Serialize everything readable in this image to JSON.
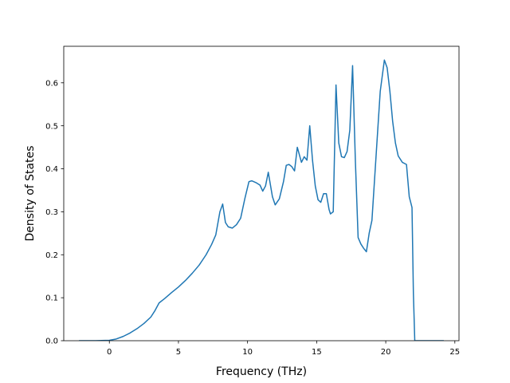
{
  "chart_data": {
    "type": "line",
    "title": "",
    "xlabel": "Frequency (THz)",
    "ylabel": "Density of States",
    "xlim": [
      -3.3,
      25.3
    ],
    "ylim": [
      0.0,
      0.685
    ],
    "xticks": [
      0,
      5,
      10,
      15,
      20,
      25
    ],
    "yticks": [
      0.0,
      0.1,
      0.2,
      0.3,
      0.4,
      0.5,
      0.6
    ],
    "xtick_labels": [
      "0",
      "5",
      "10",
      "15",
      "20",
      "25"
    ],
    "ytick_labels": [
      "0.0",
      "0.1",
      "0.2",
      "0.3",
      "0.4",
      "0.5",
      "0.6"
    ],
    "grid": false,
    "legend": "none",
    "line_color": "#1f77b4",
    "series": [
      {
        "x": [
          -2.2,
          -1.0,
          0.0,
          0.5,
          1.0,
          1.5,
          2.0,
          2.5,
          3.0,
          3.3,
          3.6,
          4.0,
          4.5,
          5.0,
          5.5,
          6.0,
          6.5,
          7.0,
          7.4,
          7.7,
          8.0,
          8.2,
          8.4,
          8.6,
          8.9,
          9.2,
          9.5,
          9.8,
          10.1,
          10.3,
          10.6,
          10.9,
          11.1,
          11.3,
          11.5,
          11.8,
          12.0,
          12.3,
          12.6,
          12.8,
          13.0,
          13.2,
          13.4,
          13.6,
          13.9,
          14.1,
          14.3,
          14.5,
          14.7,
          14.9,
          15.1,
          15.3,
          15.5,
          15.7,
          15.9,
          16.0,
          16.2,
          16.4,
          16.6,
          16.8,
          17.0,
          17.2,
          17.4,
          17.6,
          17.8,
          18.0,
          18.2,
          18.4,
          18.6,
          18.8,
          19.0,
          19.3,
          19.6,
          19.9,
          20.1,
          20.3,
          20.5,
          20.7,
          20.9,
          21.2,
          21.5,
          21.7,
          21.9,
          22.0,
          22.1,
          22.3,
          23.0,
          24.2
        ],
        "y": [
          0.0,
          0.0,
          0.001,
          0.004,
          0.01,
          0.018,
          0.028,
          0.04,
          0.055,
          0.07,
          0.088,
          0.098,
          0.112,
          0.125,
          0.14,
          0.157,
          0.176,
          0.2,
          0.224,
          0.246,
          0.3,
          0.318,
          0.275,
          0.265,
          0.262,
          0.27,
          0.285,
          0.33,
          0.37,
          0.372,
          0.368,
          0.362,
          0.348,
          0.36,
          0.392,
          0.335,
          0.316,
          0.33,
          0.37,
          0.408,
          0.41,
          0.405,
          0.395,
          0.45,
          0.415,
          0.428,
          0.42,
          0.5,
          0.42,
          0.36,
          0.328,
          0.322,
          0.342,
          0.342,
          0.305,
          0.295,
          0.3,
          0.595,
          0.46,
          0.428,
          0.426,
          0.44,
          0.49,
          0.64,
          0.42,
          0.24,
          0.225,
          0.215,
          0.207,
          0.25,
          0.28,
          0.43,
          0.58,
          0.653,
          0.635,
          0.58,
          0.51,
          0.46,
          0.43,
          0.415,
          0.41,
          0.335,
          0.31,
          0.11,
          0.0,
          0.0,
          0.0,
          0.0
        ]
      }
    ]
  }
}
